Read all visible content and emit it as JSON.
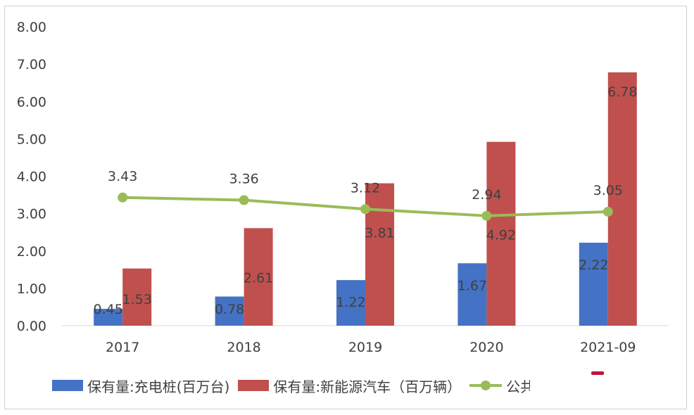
{
  "chart_data": {
    "type": "bar",
    "categories": [
      "2017",
      "2018",
      "2019",
      "2020",
      "2021-09"
    ],
    "series": [
      {
        "name": "保有量:充电桩(百万台)",
        "type": "bar",
        "color": "#4472c4",
        "values": [
          0.45,
          0.78,
          1.22,
          1.67,
          2.22
        ]
      },
      {
        "name": "保有量:新能源汽车（百万辆）",
        "type": "bar",
        "color": "#c0504d",
        "values": [
          1.53,
          2.61,
          3.81,
          4.92,
          6.78
        ]
      },
      {
        "name": "公共",
        "type": "line",
        "color": "#9bbb59",
        "values": [
          3.43,
          3.36,
          3.12,
          2.94,
          3.05
        ]
      }
    ],
    "y_ticks": [
      "0.00",
      "1.00",
      "2.00",
      "3.00",
      "4.00",
      "5.00",
      "6.00",
      "7.00",
      "8.00"
    ],
    "ylim": [
      0,
      8
    ],
    "grid": false,
    "legend_position": "bottom",
    "title": "",
    "xlabel": "",
    "ylabel": ""
  },
  "legend": {
    "item1": "保有量:充电桩(百万台)",
    "item2": "保有量:新能源汽车（百万辆）",
    "item3": "公共"
  }
}
